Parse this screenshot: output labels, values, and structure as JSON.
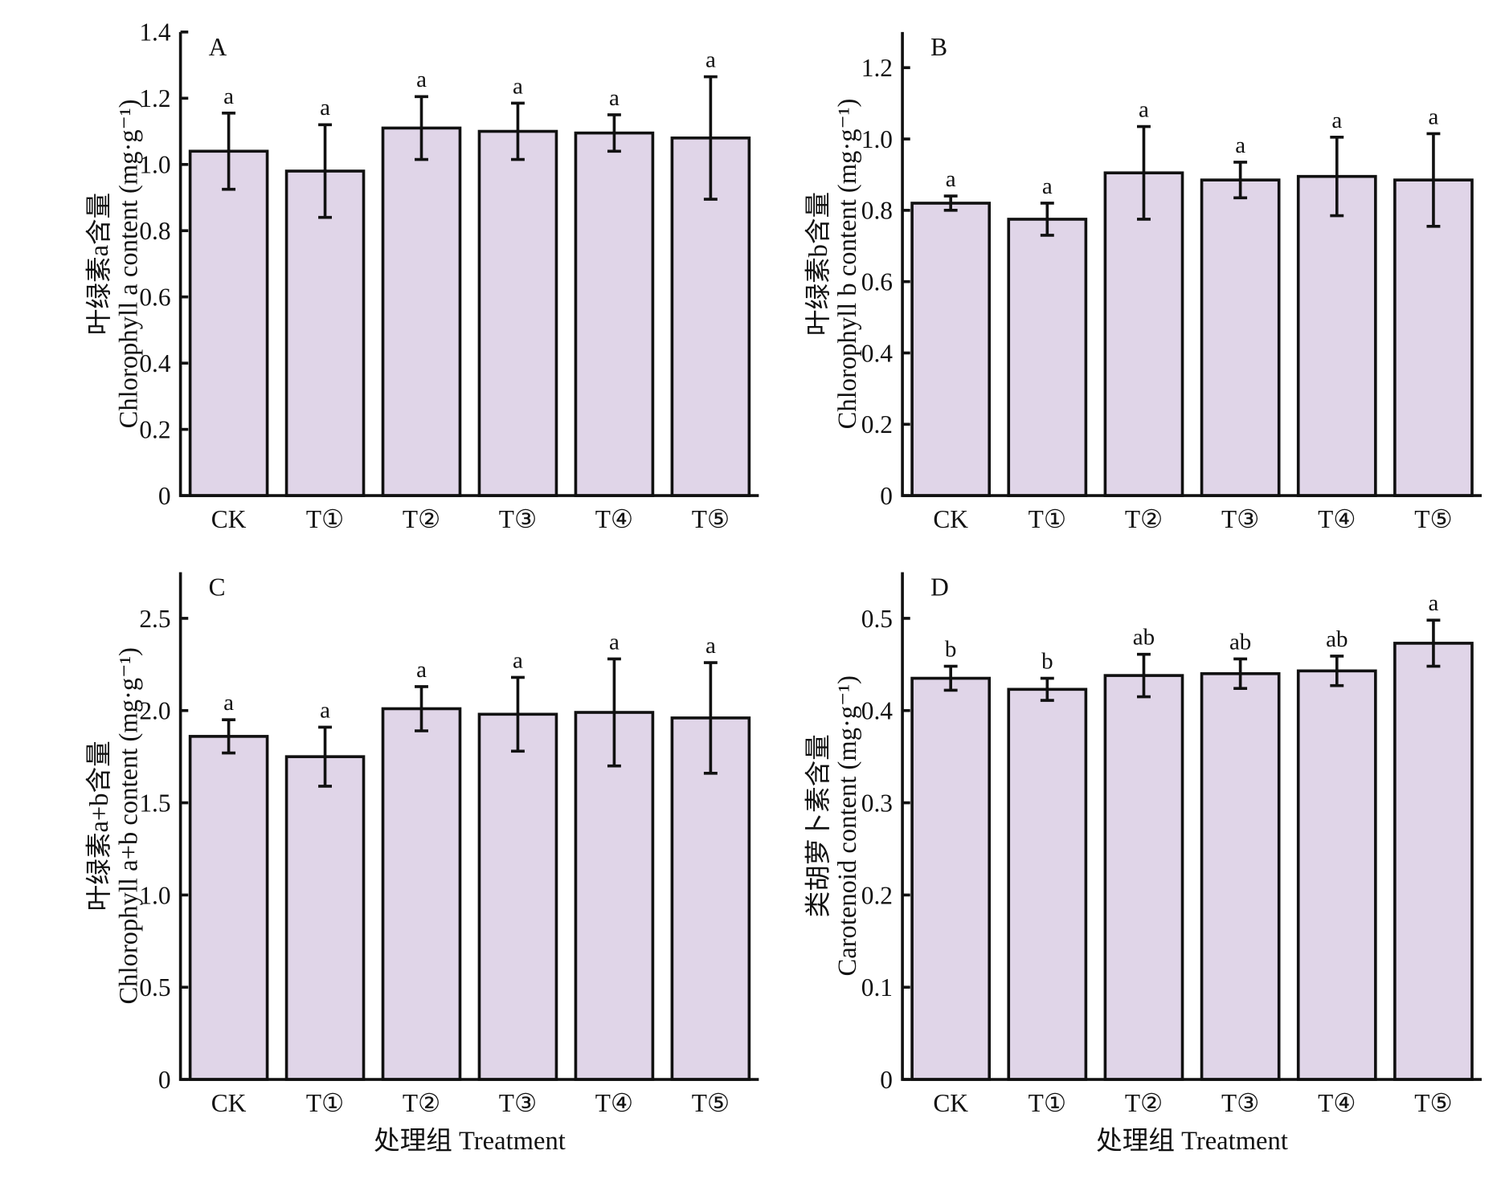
{
  "xlabel": "处理组 Treatment",
  "colors": {
    "bar_fill": "#e0d5e8",
    "bar_stroke": "#111111"
  },
  "chart_data": [
    {
      "type": "bar",
      "panel": "A",
      "categories": [
        "CK",
        "T①",
        "T②",
        "T③",
        "T④",
        "T⑤"
      ],
      "values": [
        1.04,
        0.98,
        1.11,
        1.1,
        1.095,
        1.08
      ],
      "errors": [
        0.115,
        0.14,
        0.095,
        0.085,
        0.055,
        0.185
      ],
      "letters": [
        "a",
        "a",
        "a",
        "a",
        "a",
        "a"
      ],
      "ylabel_cn": "叶绿素a含量",
      "ylabel_en": "Chlorophyll a content (mg·g⁻¹)",
      "ylim": [
        0,
        1.4
      ],
      "yticks": [
        0,
        0.2,
        0.4,
        0.6,
        0.8,
        1.0,
        1.2,
        1.4
      ],
      "ytick_labels": [
        "0",
        "0.2",
        "0.4",
        "0.6",
        "0.8",
        "1.0",
        "1.2",
        "1.4"
      ],
      "xlabel": "",
      "grid": false
    },
    {
      "type": "bar",
      "panel": "B",
      "categories": [
        "CK",
        "T①",
        "T②",
        "T③",
        "T④",
        "T⑤"
      ],
      "values": [
        0.82,
        0.775,
        0.905,
        0.885,
        0.895,
        0.885
      ],
      "errors": [
        0.02,
        0.045,
        0.13,
        0.05,
        0.11,
        0.13
      ],
      "letters": [
        "a",
        "a",
        "a",
        "a",
        "a",
        "a"
      ],
      "ylabel_cn": "叶绿素b含量",
      "ylabel_en": "Chlorophyll b content (mg·g⁻¹)",
      "ylim": [
        0,
        1.3
      ],
      "yticks": [
        0,
        0.2,
        0.4,
        0.6,
        0.8,
        1.0,
        1.2
      ],
      "ytick_labels": [
        "0",
        "0.2",
        "0.4",
        "0.6",
        "0.8",
        "1.0",
        "1.2"
      ],
      "xlabel": "",
      "grid": false
    },
    {
      "type": "bar",
      "panel": "C",
      "categories": [
        "CK",
        "T①",
        "T②",
        "T③",
        "T④",
        "T⑤"
      ],
      "values": [
        1.86,
        1.75,
        2.01,
        1.98,
        1.99,
        1.96
      ],
      "errors": [
        0.09,
        0.16,
        0.12,
        0.2,
        0.29,
        0.3
      ],
      "letters": [
        "a",
        "a",
        "a",
        "a",
        "a",
        "a"
      ],
      "ylabel_cn": "叶绿素a+b含量",
      "ylabel_en": "Chlorophyll a+b content (mg·g⁻¹)",
      "ylim": [
        0,
        2.75
      ],
      "yticks": [
        0,
        0.5,
        1.0,
        1.5,
        2.0,
        2.5
      ],
      "ytick_labels": [
        "0",
        "0.5",
        "1.0",
        "1.5",
        "2.0",
        "2.5"
      ],
      "xlabel": "处理组 Treatment",
      "grid": false
    },
    {
      "type": "bar",
      "panel": "D",
      "categories": [
        "CK",
        "T①",
        "T②",
        "T③",
        "T④",
        "T⑤"
      ],
      "values": [
        0.435,
        0.423,
        0.438,
        0.44,
        0.443,
        0.473
      ],
      "errors": [
        0.013,
        0.012,
        0.023,
        0.016,
        0.016,
        0.025
      ],
      "letters": [
        "b",
        "b",
        "ab",
        "ab",
        "ab",
        "a"
      ],
      "ylabel_cn": "类胡萝卜素含量",
      "ylabel_en": "Carotenoid content (mg·g⁻¹)",
      "ylim": [
        0,
        0.55
      ],
      "yticks": [
        0,
        0.1,
        0.2,
        0.3,
        0.4,
        0.5
      ],
      "ytick_labels": [
        "0",
        "0.1",
        "0.2",
        "0.3",
        "0.4",
        "0.5"
      ],
      "xlabel": "处理组 Treatment",
      "grid": false
    }
  ]
}
